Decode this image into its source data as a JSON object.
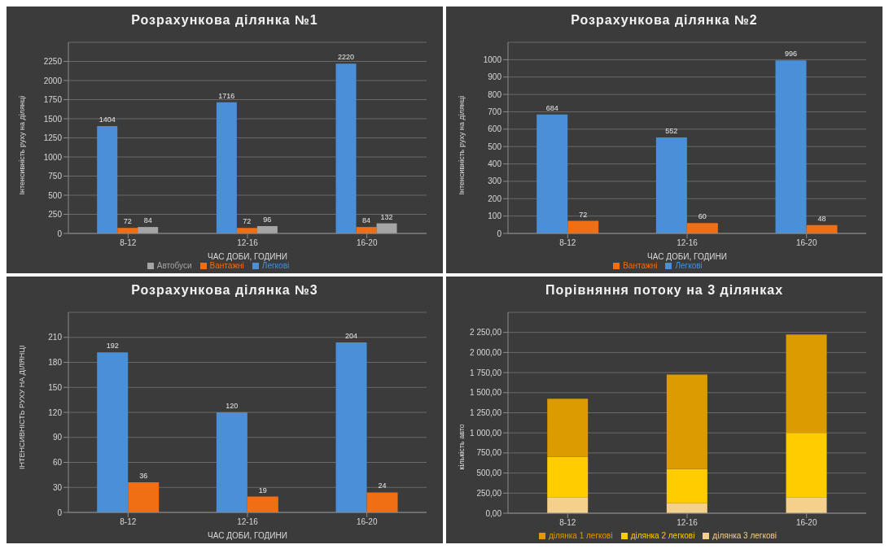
{
  "chart_data": [
    {
      "type": "bar",
      "title": "Розрахункова ділянка  №1",
      "xlabel": "ЧАС ДОБИ,   ГОДИНИ",
      "ylabel": "Інтенсивність руху на ділянці",
      "categories": [
        "8-12",
        "12-16",
        "16-20"
      ],
      "series": [
        {
          "name": "Легкові",
          "color": "#4a90d9",
          "values": [
            1404,
            1716,
            2220
          ]
        },
        {
          "name": "Вантажні",
          "color": "#f06e14",
          "values": [
            72,
            72,
            84
          ]
        },
        {
          "name": "Автобуси",
          "color": "#a5a5a5",
          "values": [
            84,
            96,
            132
          ]
        }
      ],
      "ylim": [
        0,
        2500
      ],
      "yticks": [
        0,
        250,
        500,
        750,
        1000,
        1250,
        1500,
        1750,
        2000,
        2250
      ],
      "grid": "y",
      "legend": "bottom",
      "data_labels": true
    },
    {
      "type": "bar",
      "title": "Розрахункова  ділянка  №2",
      "xlabel": "ЧАС ДОБИ,   ГОДИНИ",
      "ylabel": "Інтенсивність руху на ділянці",
      "categories": [
        "8-12",
        "12-16",
        "16-20"
      ],
      "series": [
        {
          "name": "Легкові",
          "color": "#4a90d9",
          "values": [
            684,
            552,
            996
          ]
        },
        {
          "name": "Вантажні",
          "color": "#f06e14",
          "values": [
            72,
            60,
            48
          ]
        }
      ],
      "ylim": [
        0,
        1100
      ],
      "yticks": [
        0,
        100,
        200,
        300,
        400,
        500,
        600,
        700,
        800,
        900,
        1000
      ],
      "grid": "y",
      "legend": "bottom",
      "data_labels": true
    },
    {
      "type": "bar",
      "title": "Розрахункова  ділянка  №3",
      "xlabel": "ЧАС ДОБИ,   ГОДИНИ",
      "ylabel": "ІНТЕНСИВНІСТЬ РУХУ НА ДІЛЯНЦІ",
      "categories": [
        "8-12",
        "12-16",
        "16-20"
      ],
      "series": [
        {
          "color": "#4a90d9",
          "values": [
            192,
            120,
            204
          ]
        },
        {
          "color": "#f06e14",
          "values": [
            36,
            19,
            24
          ]
        }
      ],
      "ylim": [
        0,
        240
      ],
      "yticks": [
        0,
        30,
        60,
        90,
        120,
        150,
        180,
        210
      ],
      "grid": "y",
      "data_labels": true
    },
    {
      "type": "bar",
      "title": "Порівняння потоку на 3 ділянках",
      "ylabel": "кількість авто",
      "categories": [
        "8-12",
        "12-16",
        "16-20"
      ],
      "stacked": true,
      "series": [
        {
          "name": "ділянка 3 легкові",
          "color": "#f5cf8c",
          "values": [
            200,
            125,
            200
          ]
        },
        {
          "name": "ділянка 2 легкові",
          "color": "#ffcc00",
          "values": [
            500,
            425,
            800
          ]
        },
        {
          "name": "ділянка 1 легкові",
          "color": "#dc9c00",
          "values": [
            725,
            1175,
            1225
          ]
        }
      ],
      "ylim": [
        0,
        2500
      ],
      "yticks": [
        {
          "value": 0,
          "label": "0,00"
        },
        {
          "value": 250,
          "label": "250,00"
        },
        {
          "value": 500,
          "label": "500,00"
        },
        {
          "value": 750,
          "label": "750,00"
        },
        {
          "value": 1000,
          "label": "1 000,00"
        },
        {
          "value": 1250,
          "label": "1 250,00"
        },
        {
          "value": 1500,
          "label": "1 500,00"
        },
        {
          "value": 1750,
          "label": "1 750,00"
        },
        {
          "value": 2000,
          "label": "2 000,00"
        },
        {
          "value": 2250,
          "label": "2 250,00"
        }
      ],
      "grid": "y",
      "legend": "bottom"
    }
  ]
}
